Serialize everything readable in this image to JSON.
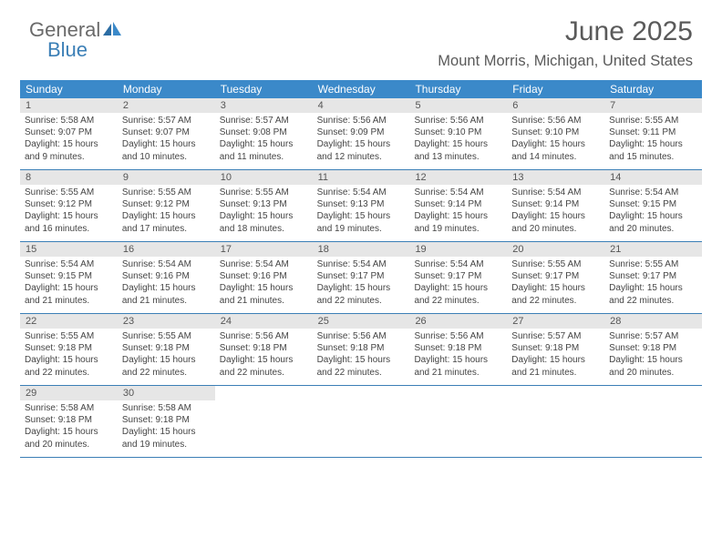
{
  "brand": {
    "word1": "General",
    "word2": "Blue"
  },
  "title": "June 2025",
  "location": "Mount Morris, Michigan, United States",
  "colors": {
    "header_bg": "#3b89c9",
    "border": "#3b7fb6",
    "daynum_bg": "#e6e6e6",
    "text": "#444444",
    "title_color": "#5a5a5a"
  },
  "fonts": {
    "title_size": 30,
    "location_size": 16.5,
    "header_size": 12,
    "daynum_size": 11,
    "body_size": 10
  },
  "day_labels": [
    "Sunday",
    "Monday",
    "Tuesday",
    "Wednesday",
    "Thursday",
    "Friday",
    "Saturday"
  ],
  "weeks": [
    [
      {
        "num": "1",
        "sunrise": "Sunrise: 5:58 AM",
        "sunset": "Sunset: 9:07 PM",
        "daylight": "Daylight: 15 hours and 9 minutes."
      },
      {
        "num": "2",
        "sunrise": "Sunrise: 5:57 AM",
        "sunset": "Sunset: 9:07 PM",
        "daylight": "Daylight: 15 hours and 10 minutes."
      },
      {
        "num": "3",
        "sunrise": "Sunrise: 5:57 AM",
        "sunset": "Sunset: 9:08 PM",
        "daylight": "Daylight: 15 hours and 11 minutes."
      },
      {
        "num": "4",
        "sunrise": "Sunrise: 5:56 AM",
        "sunset": "Sunset: 9:09 PM",
        "daylight": "Daylight: 15 hours and 12 minutes."
      },
      {
        "num": "5",
        "sunrise": "Sunrise: 5:56 AM",
        "sunset": "Sunset: 9:10 PM",
        "daylight": "Daylight: 15 hours and 13 minutes."
      },
      {
        "num": "6",
        "sunrise": "Sunrise: 5:56 AM",
        "sunset": "Sunset: 9:10 PM",
        "daylight": "Daylight: 15 hours and 14 minutes."
      },
      {
        "num": "7",
        "sunrise": "Sunrise: 5:55 AM",
        "sunset": "Sunset: 9:11 PM",
        "daylight": "Daylight: 15 hours and 15 minutes."
      }
    ],
    [
      {
        "num": "8",
        "sunrise": "Sunrise: 5:55 AM",
        "sunset": "Sunset: 9:12 PM",
        "daylight": "Daylight: 15 hours and 16 minutes."
      },
      {
        "num": "9",
        "sunrise": "Sunrise: 5:55 AM",
        "sunset": "Sunset: 9:12 PM",
        "daylight": "Daylight: 15 hours and 17 minutes."
      },
      {
        "num": "10",
        "sunrise": "Sunrise: 5:55 AM",
        "sunset": "Sunset: 9:13 PM",
        "daylight": "Daylight: 15 hours and 18 minutes."
      },
      {
        "num": "11",
        "sunrise": "Sunrise: 5:54 AM",
        "sunset": "Sunset: 9:13 PM",
        "daylight": "Daylight: 15 hours and 19 minutes."
      },
      {
        "num": "12",
        "sunrise": "Sunrise: 5:54 AM",
        "sunset": "Sunset: 9:14 PM",
        "daylight": "Daylight: 15 hours and 19 minutes."
      },
      {
        "num": "13",
        "sunrise": "Sunrise: 5:54 AM",
        "sunset": "Sunset: 9:14 PM",
        "daylight": "Daylight: 15 hours and 20 minutes."
      },
      {
        "num": "14",
        "sunrise": "Sunrise: 5:54 AM",
        "sunset": "Sunset: 9:15 PM",
        "daylight": "Daylight: 15 hours and 20 minutes."
      }
    ],
    [
      {
        "num": "15",
        "sunrise": "Sunrise: 5:54 AM",
        "sunset": "Sunset: 9:15 PM",
        "daylight": "Daylight: 15 hours and 21 minutes."
      },
      {
        "num": "16",
        "sunrise": "Sunrise: 5:54 AM",
        "sunset": "Sunset: 9:16 PM",
        "daylight": "Daylight: 15 hours and 21 minutes."
      },
      {
        "num": "17",
        "sunrise": "Sunrise: 5:54 AM",
        "sunset": "Sunset: 9:16 PM",
        "daylight": "Daylight: 15 hours and 21 minutes."
      },
      {
        "num": "18",
        "sunrise": "Sunrise: 5:54 AM",
        "sunset": "Sunset: 9:17 PM",
        "daylight": "Daylight: 15 hours and 22 minutes."
      },
      {
        "num": "19",
        "sunrise": "Sunrise: 5:54 AM",
        "sunset": "Sunset: 9:17 PM",
        "daylight": "Daylight: 15 hours and 22 minutes."
      },
      {
        "num": "20",
        "sunrise": "Sunrise: 5:55 AM",
        "sunset": "Sunset: 9:17 PM",
        "daylight": "Daylight: 15 hours and 22 minutes."
      },
      {
        "num": "21",
        "sunrise": "Sunrise: 5:55 AM",
        "sunset": "Sunset: 9:17 PM",
        "daylight": "Daylight: 15 hours and 22 minutes."
      }
    ],
    [
      {
        "num": "22",
        "sunrise": "Sunrise: 5:55 AM",
        "sunset": "Sunset: 9:18 PM",
        "daylight": "Daylight: 15 hours and 22 minutes."
      },
      {
        "num": "23",
        "sunrise": "Sunrise: 5:55 AM",
        "sunset": "Sunset: 9:18 PM",
        "daylight": "Daylight: 15 hours and 22 minutes."
      },
      {
        "num": "24",
        "sunrise": "Sunrise: 5:56 AM",
        "sunset": "Sunset: 9:18 PM",
        "daylight": "Daylight: 15 hours and 22 minutes."
      },
      {
        "num": "25",
        "sunrise": "Sunrise: 5:56 AM",
        "sunset": "Sunset: 9:18 PM",
        "daylight": "Daylight: 15 hours and 22 minutes."
      },
      {
        "num": "26",
        "sunrise": "Sunrise: 5:56 AM",
        "sunset": "Sunset: 9:18 PM",
        "daylight": "Daylight: 15 hours and 21 minutes."
      },
      {
        "num": "27",
        "sunrise": "Sunrise: 5:57 AM",
        "sunset": "Sunset: 9:18 PM",
        "daylight": "Daylight: 15 hours and 21 minutes."
      },
      {
        "num": "28",
        "sunrise": "Sunrise: 5:57 AM",
        "sunset": "Sunset: 9:18 PM",
        "daylight": "Daylight: 15 hours and 20 minutes."
      }
    ],
    [
      {
        "num": "29",
        "sunrise": "Sunrise: 5:58 AM",
        "sunset": "Sunset: 9:18 PM",
        "daylight": "Daylight: 15 hours and 20 minutes."
      },
      {
        "num": "30",
        "sunrise": "Sunrise: 5:58 AM",
        "sunset": "Sunset: 9:18 PM",
        "daylight": "Daylight: 15 hours and 19 minutes."
      },
      null,
      null,
      null,
      null,
      null
    ]
  ]
}
